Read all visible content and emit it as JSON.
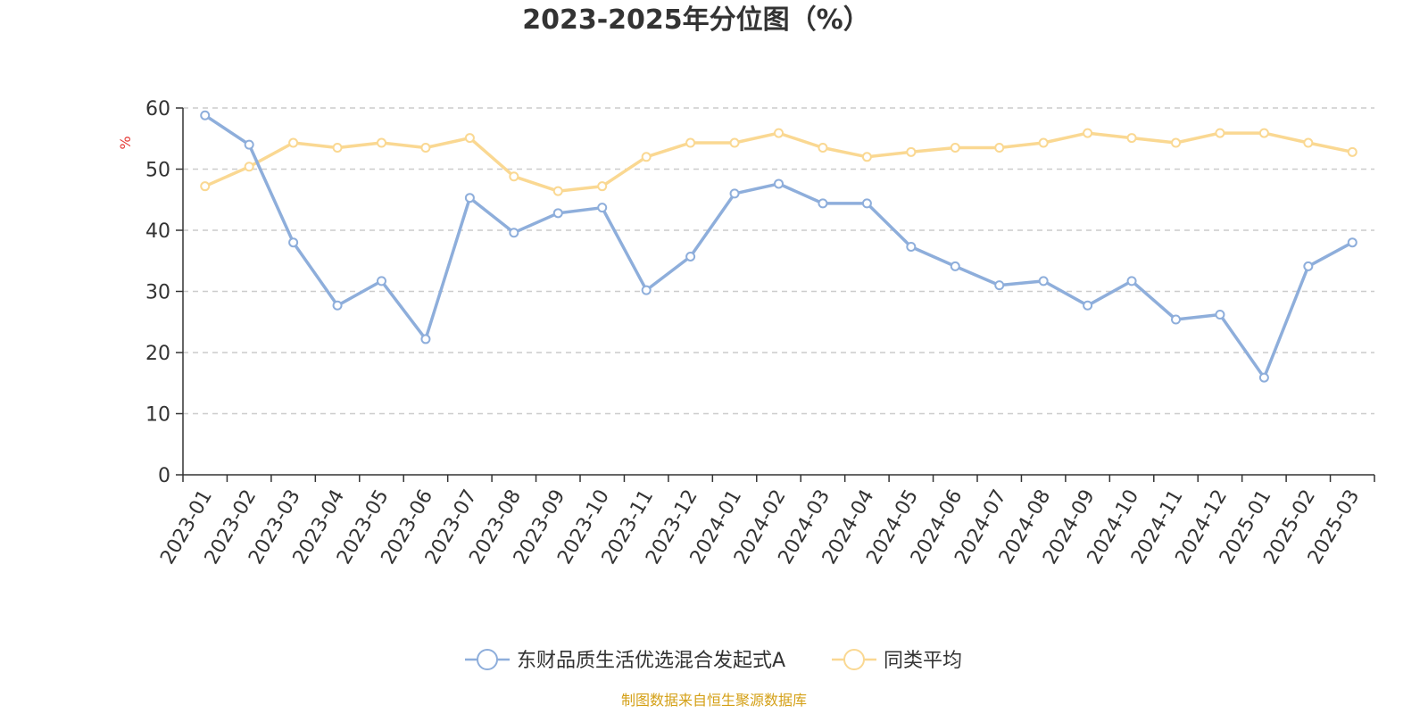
{
  "chart_data": {
    "type": "line",
    "title": "2023-2025年分位图（%）",
    "ylabel": "%",
    "ylim": [
      0,
      60
    ],
    "yticks": [
      0,
      10,
      20,
      30,
      40,
      50,
      60
    ],
    "grid": true,
    "legend_position": "bottom",
    "categories": [
      "2023-01",
      "2023-02",
      "2023-03",
      "2023-04",
      "2023-05",
      "2023-06",
      "2023-07",
      "2023-08",
      "2023-09",
      "2023-10",
      "2023-11",
      "2023-12",
      "2024-01",
      "2024-02",
      "2024-03",
      "2024-04",
      "2024-05",
      "2024-06",
      "2024-07",
      "2024-08",
      "2024-09",
      "2024-10",
      "2024-11",
      "2024-12",
      "2025-01",
      "2025-02",
      "2025-03"
    ],
    "series": [
      {
        "name": "东财品质生活优选混合发起式A",
        "color": "#8eaedb",
        "values": [
          58.8,
          54.0,
          38.0,
          27.7,
          31.7,
          22.2,
          45.3,
          39.6,
          42.8,
          43.7,
          30.2,
          35.7,
          46.0,
          47.6,
          44.4,
          44.4,
          37.3,
          34.1,
          31.0,
          31.7,
          27.7,
          31.7,
          25.4,
          26.2,
          15.9,
          34.1,
          38.0
        ]
      },
      {
        "name": "同类平均",
        "color": "#fad892",
        "values": [
          47.2,
          50.4,
          54.3,
          53.5,
          54.3,
          53.5,
          55.1,
          48.8,
          46.4,
          47.2,
          52.0,
          54.3,
          54.3,
          55.9,
          53.5,
          52.0,
          52.8,
          53.5,
          53.5,
          54.3,
          55.9,
          55.1,
          54.3,
          55.9,
          55.9,
          54.3,
          52.8
        ]
      }
    ]
  },
  "colors": {
    "ylabel": "#e53935",
    "source": "#d4a017",
    "grid": "#cccccc",
    "axis": "#333333"
  },
  "footer": {
    "source": "制图数据来自恒生聚源数据库"
  }
}
